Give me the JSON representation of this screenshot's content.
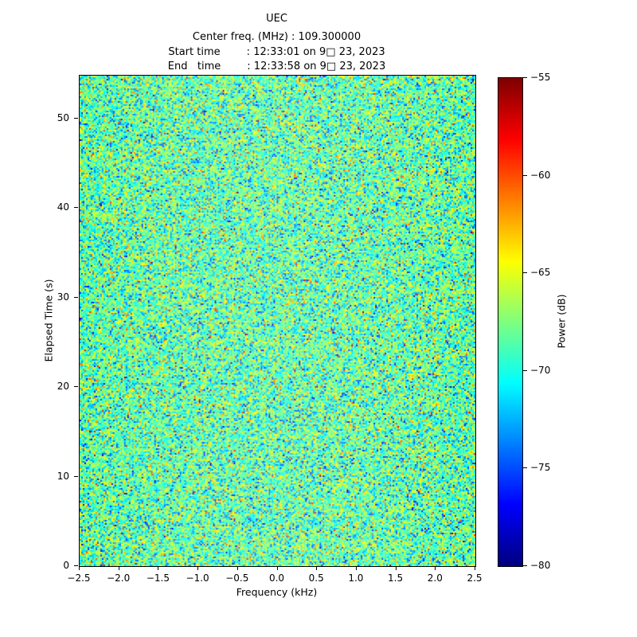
{
  "figure": {
    "title": "UEC",
    "subtitle_lines": [
      "Center freq. (MHz) : 109.300000",
      "Start time        : 12:33:01 on 9□ 23, 2023",
      "End   time        : 12:33:58 on 9□ 23, 2023"
    ]
  },
  "chart_data": {
    "type": "heatmap",
    "title": "UEC",
    "center_freq_mhz": "109.300000",
    "start_time": "12:33:01 on 9□ 23, 2023",
    "end_time": "12:33:58 on 9□ 23, 2023",
    "xlabel": "Frequency (kHz)",
    "ylabel": "Elapsed Time (s)",
    "xlim": [
      -2.5,
      2.5
    ],
    "ylim": [
      0,
      54.8
    ],
    "x_ticks": [
      -2.5,
      -2.0,
      -1.5,
      -1.0,
      -0.5,
      0.0,
      0.5,
      1.0,
      1.5,
      2.0,
      2.5
    ],
    "x_tick_labels": [
      "−2.5",
      "−2.0",
      "−1.5",
      "−1.0",
      "−0.5",
      "0.0",
      "0.5",
      "1.0",
      "1.5",
      "2.0",
      "2.5"
    ],
    "y_ticks": [
      0,
      10,
      20,
      30,
      40,
      50
    ],
    "y_tick_labels": [
      "0",
      "10",
      "20",
      "30",
      "40",
      "50"
    ],
    "grid": false,
    "colormap": "jet",
    "clim": [
      -80,
      -55
    ],
    "colorbar_label": "Power (dB)",
    "colorbar_ticks": [
      -55,
      -60,
      -65,
      -70,
      -75,
      -80
    ],
    "colorbar_tick_labels": [
      "−55",
      "−60",
      "−65",
      "−70",
      "−75",
      "−80"
    ],
    "values_description": "Broadband noise spectrogram with no visible coherent signal; per-bin power is random, approximately gaussian around -68.5 dB (std ~3.2 dB), clipped to the -80..-55 dB color range, appearing as speckled cyan/green/yellow with sparse dark-blue and orange points.",
    "noise": {
      "mean_db": -68.5,
      "std_db": 3.2,
      "seed": 1337,
      "cols": 249,
      "rows": 308
    }
  }
}
